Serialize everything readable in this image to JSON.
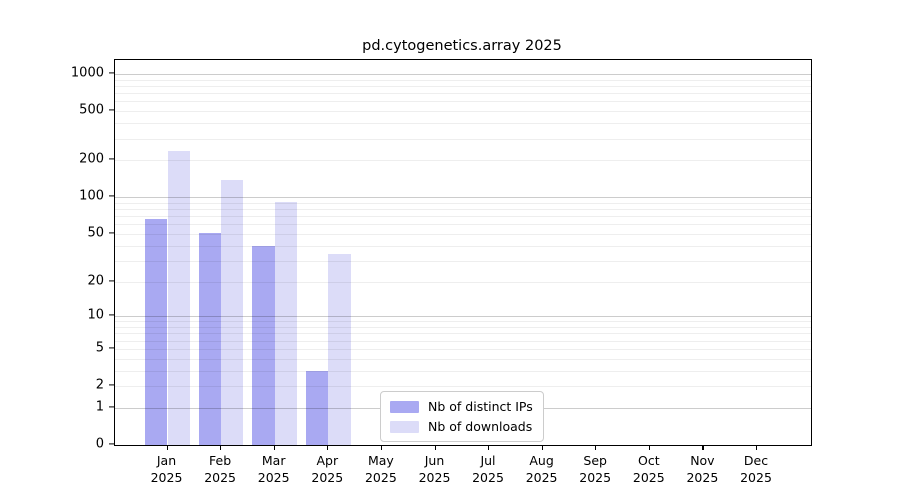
{
  "chart_data": {
    "type": "bar",
    "title": "pd.cytogenetics.array 2025",
    "categories": [
      "Jan",
      "Feb",
      "Mar",
      "Apr",
      "May",
      "Jun",
      "Jul",
      "Aug",
      "Sep",
      "Oct",
      "Nov",
      "Dec"
    ],
    "category_year": "2025",
    "series": [
      {
        "name": "Nb of distinct IPs",
        "color": "#a9a9f2",
        "values": [
          66,
          51,
          40,
          3,
          0,
          0,
          0,
          0,
          0,
          0,
          0,
          0
        ]
      },
      {
        "name": "Nb of downloads",
        "color": "#dcdcf8",
        "values": [
          240,
          138,
          92,
          34,
          0,
          0,
          0,
          0,
          0,
          0,
          0,
          0
        ]
      }
    ],
    "xlabel": "",
    "ylabel": "",
    "yscale": "symlog (log1p)",
    "ylim": [
      0,
      1000
    ],
    "yticks": [
      0,
      1,
      2,
      5,
      10,
      20,
      50,
      100,
      200,
      500,
      1000
    ],
    "grid": true,
    "legend_position": "bottom-center-inside"
  }
}
